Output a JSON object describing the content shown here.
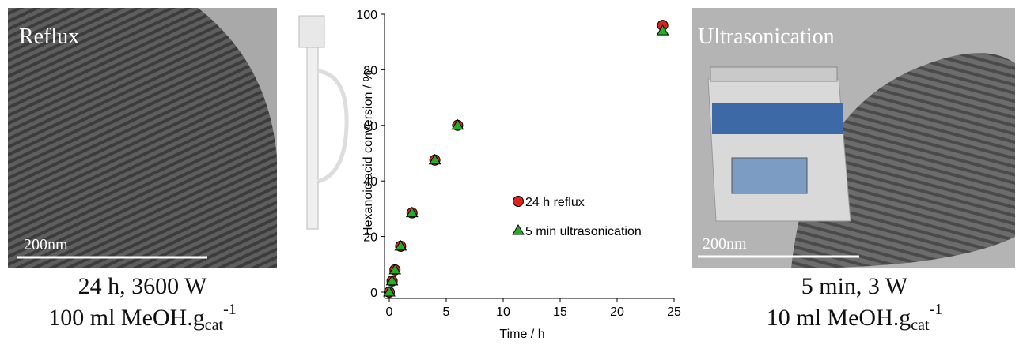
{
  "left_panel": {
    "label": "Reflux",
    "scale_bar": "200nm",
    "caption_line1": "24 h, 3600 W",
    "caption_line2": "100 ml MeOH.g",
    "caption_subscript": "cat",
    "caption_superscript": "-1"
  },
  "chart_data": {
    "type": "scatter",
    "x_label": "Time / h",
    "y_label": "Hexanoic acid conversion / %",
    "xlim": [
      0,
      25
    ],
    "xticks": [
      0,
      5,
      10,
      15,
      20,
      25
    ],
    "ylim": [
      0,
      100
    ],
    "yticks": [
      0,
      20,
      40,
      60,
      80,
      100
    ],
    "legend": "right",
    "series": [
      {
        "name": "24 h reflux",
        "color": "#e0201b",
        "marker": "circle",
        "x": [
          0,
          0.25,
          0.5,
          1,
          2,
          4,
          6,
          24
        ],
        "values": [
          0,
          4,
          8,
          16.5,
          28.5,
          47.5,
          60,
          96
        ]
      },
      {
        "name": "5 min ultrasonication",
        "color": "#22b022",
        "marker": "triangle",
        "x": [
          0,
          0.25,
          0.5,
          1,
          2,
          4,
          6,
          24
        ],
        "values": [
          0,
          4,
          8,
          16.5,
          28.5,
          47.5,
          60,
          94
        ]
      }
    ]
  },
  "right_panel": {
    "label": "Ultrasonication",
    "scale_bar": "200nm",
    "caption_line1": "5 min, 3 W",
    "caption_line2": "10 ml MeOH.g",
    "caption_subscript": "cat",
    "caption_superscript": "-1"
  }
}
